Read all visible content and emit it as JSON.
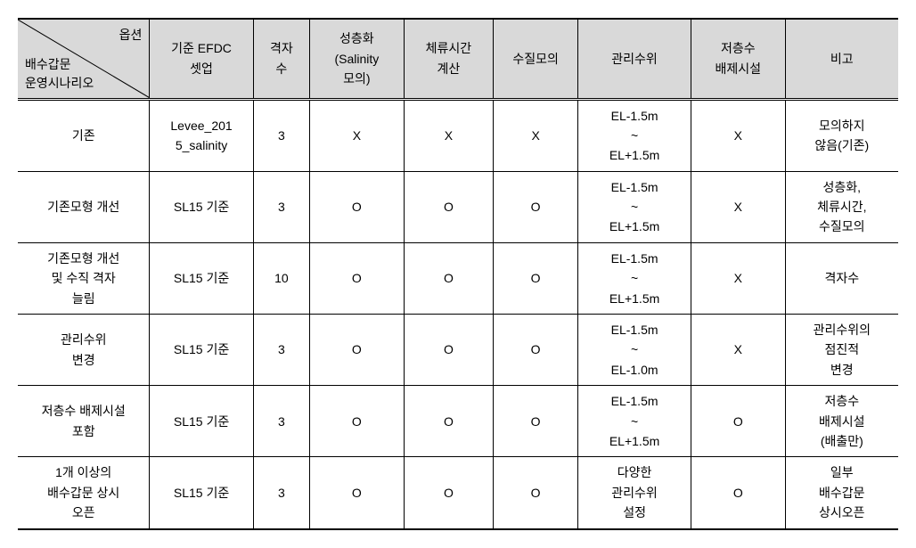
{
  "header": {
    "diag_top": "옵션",
    "diag_bottom": "배수갑문\n운영시나리오",
    "cols": [
      "기준 EFDC\n셋업",
      "격자\n수",
      "성층화\n(Salinity\n모의)",
      "체류시간\n계산",
      "수질모의",
      "관리수위",
      "저층수\n배제시설",
      "비고"
    ]
  },
  "rows": [
    {
      "label": "기존",
      "cells": [
        "Levee_201\n5_salinity",
        "3",
        "X",
        "X",
        "X",
        "EL-1.5m\n~\nEL+1.5m",
        "X",
        "모의하지\n않음(기존)"
      ]
    },
    {
      "label": "기존모형 개선",
      "cells": [
        "SL15 기준",
        "3",
        "O",
        "O",
        "O",
        "EL-1.5m\n~\nEL+1.5m",
        "X",
        "성층화,\n체류시간,\n수질모의"
      ]
    },
    {
      "label": "기존모형 개선\n및 수직 격자\n늘림",
      "cells": [
        "SL15 기준",
        "10",
        "O",
        "O",
        "O",
        "EL-1.5m\n~\nEL+1.5m",
        "X",
        "격자수"
      ]
    },
    {
      "label": "관리수위\n변경",
      "cells": [
        "SL15 기준",
        "3",
        "O",
        "O",
        "O",
        "EL-1.5m\n~\nEL-1.0m",
        "X",
        "관리수위의\n점진적\n변경"
      ]
    },
    {
      "label": "저층수 배제시설\n포함",
      "cells": [
        "SL15 기준",
        "3",
        "O",
        "O",
        "O",
        "EL-1.5m\n~\nEL+1.5m",
        "O",
        "저층수\n배제시설\n(배출만)"
      ]
    },
    {
      "label": "1개 이상의\n배수갑문 상시\n오픈",
      "cells": [
        "SL15 기준",
        "3",
        "O",
        "O",
        "O",
        "다양한\n관리수위\n설정",
        "O",
        "일부\n배수갑문\n상시오픈"
      ]
    }
  ]
}
